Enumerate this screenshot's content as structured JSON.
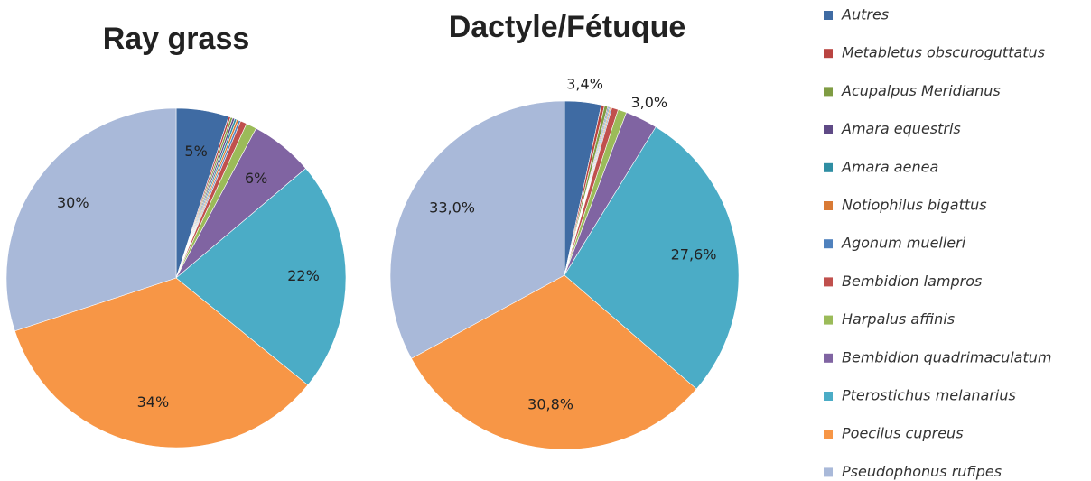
{
  "chart_data": [
    {
      "type": "pie",
      "title": "Ray grass",
      "values": [
        5,
        0.2,
        0.2,
        0.2,
        0.2,
        0.2,
        0.2,
        0.6,
        1,
        6,
        22,
        34,
        30
      ],
      "value_labels": [
        "5%",
        null,
        null,
        null,
        null,
        null,
        null,
        null,
        null,
        "6%",
        "22%",
        "34%",
        "30%"
      ]
    },
    {
      "type": "pie",
      "title": "Dactyle/Fétuque",
      "values": [
        3.4,
        0.3,
        0.3,
        0.1,
        0.1,
        0.1,
        0.1,
        0.6,
        0.8,
        3.0,
        27.6,
        30.8,
        33.0
      ],
      "value_labels": [
        "3,4%",
        null,
        null,
        null,
        null,
        null,
        null,
        null,
        null,
        "3,0%",
        "27,6%",
        "30,8%",
        "33,0%"
      ]
    }
  ],
  "legend": {
    "names": [
      "Autres",
      "Metabletus obscuroguttatus",
      "Acupalpus Meridianus",
      "Amara equestris",
      "Amara aenea",
      "Notiophilus bigattus",
      "Agonum muelleri",
      "Bembidion lampros",
      "Harpalus affinis",
      "Bembidion quadrimaculatum",
      "Pterostichus melanarius",
      "Poecilus cupreus",
      "Pseudophonus rufipes"
    ],
    "colors": [
      "#3f6ba3",
      "#b94441",
      "#7f9c43",
      "#5f4a86",
      "#2f8ea3",
      "#d97a35",
      "#4f81bd",
      "#c0504d",
      "#9bbb59",
      "#8064a2",
      "#4bacc6",
      "#f79646",
      "#a9b9d9"
    ]
  }
}
